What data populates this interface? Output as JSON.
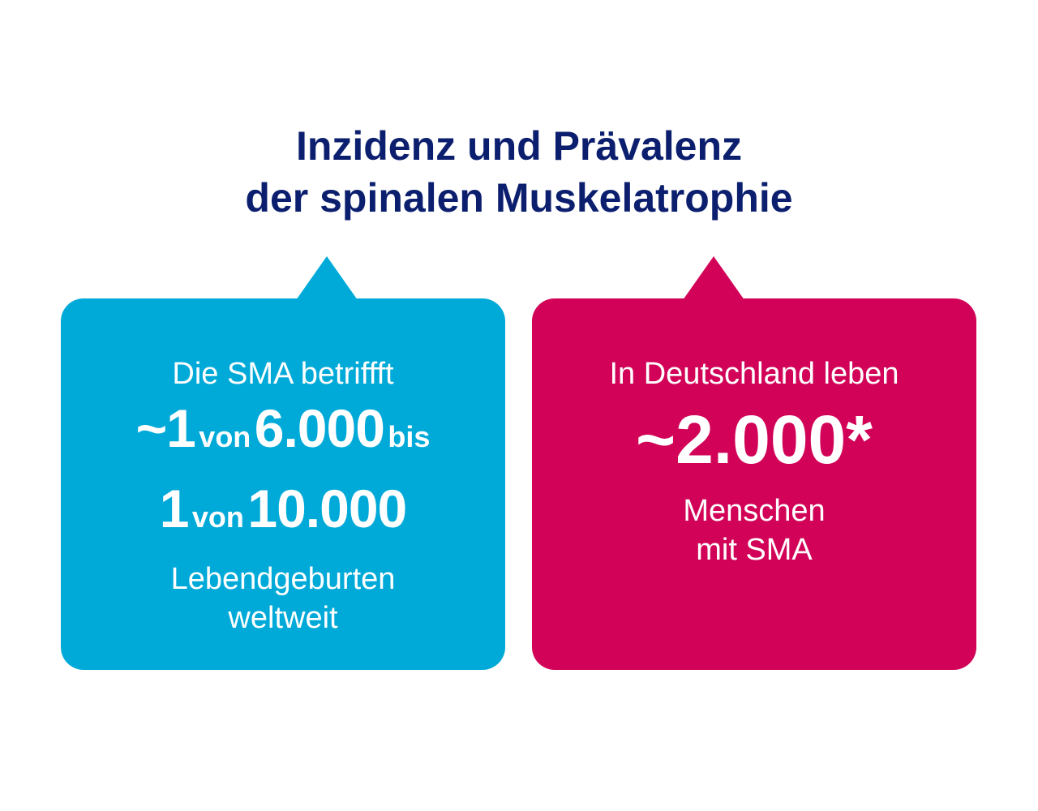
{
  "title": {
    "line1": "Inzidenz und Prävalenz",
    "line2": "der spinalen Muskelatrophie"
  },
  "left_card": {
    "intro": "Die SMA betriffft",
    "row1": {
      "a": "~1",
      "b": "von",
      "c": "6.000",
      "d": "bis"
    },
    "row2": {
      "a": "1",
      "b": "von",
      "c": "10.000"
    },
    "line3": "Lebendgeburten",
    "line4": "weltweit",
    "color": "#00aad8"
  },
  "right_card": {
    "intro": "In Deutschland leben",
    "big": "~2.000*",
    "line3": "Menschen",
    "line4": "mit SMA",
    "color": "#d10257"
  },
  "colors": {
    "title": "#0b1f6e",
    "background": "#ffffff"
  }
}
